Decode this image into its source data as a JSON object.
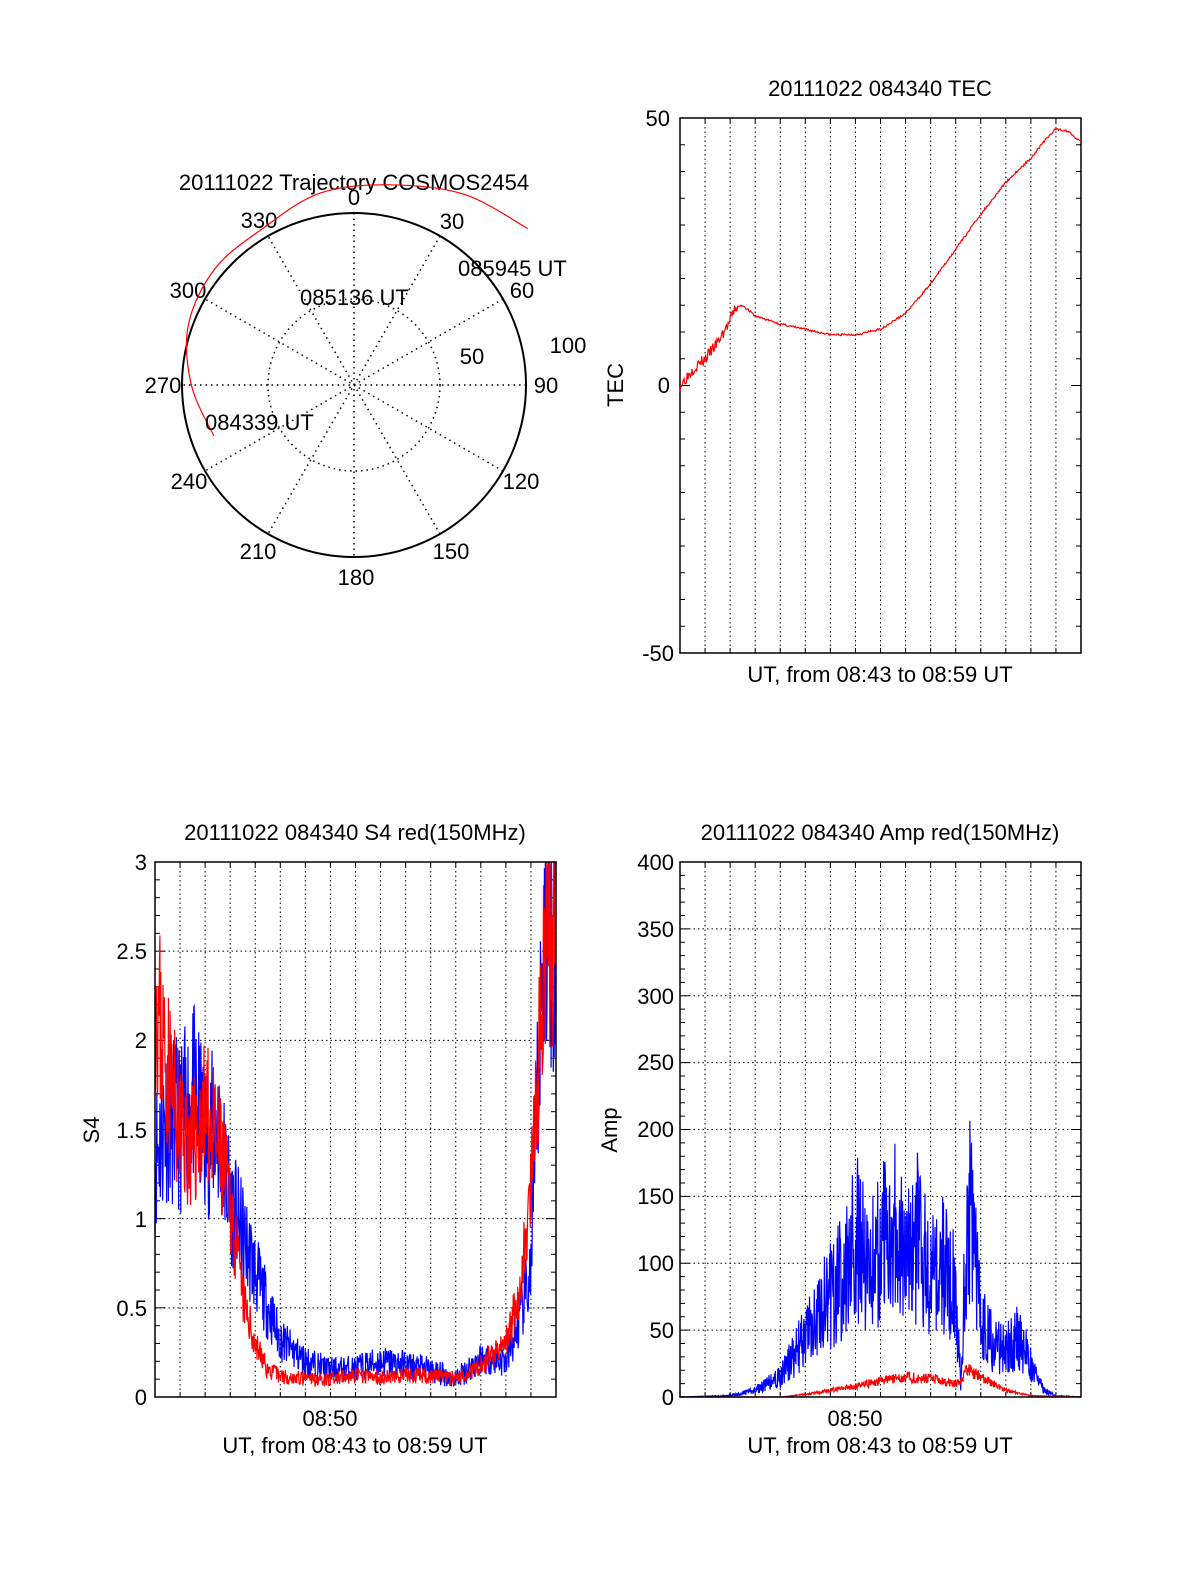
{
  "colors": {
    "red": "#ff0000",
    "blue": "#0000ff",
    "axis": "#000000",
    "grid": "#000000",
    "background": "#ffffff"
  },
  "chart_data": [
    {
      "id": "trajectory",
      "type": "scatter",
      "projection": "polar",
      "title": "20111022 Trajectory COSMOS2454",
      "angle_labels": [
        "0",
        "30",
        "60",
        "90",
        "120",
        "150",
        "180",
        "210",
        "240",
        "270",
        "300",
        "330"
      ],
      "radius_labels": [
        "50",
        "100"
      ],
      "radius_values": [
        50,
        100
      ],
      "rlim": [
        0,
        100
      ],
      "grid": true,
      "series": [
        {
          "color": "red",
          "points": [
            {
              "az": 250,
              "zenith": 88
            },
            {
              "az": 270,
              "zenith": 96
            },
            {
              "az": 290,
              "zenith": 104
            },
            {
              "az": 310,
              "zenith": 107
            },
            {
              "az": 330,
              "zenith": 107
            },
            {
              "az": 350,
              "zenith": 115
            },
            {
              "az": 10,
              "zenith": 120
            },
            {
              "az": 30,
              "zenith": 130
            },
            {
              "az": 48,
              "zenith": 138
            }
          ]
        }
      ],
      "annotations": [
        {
          "text": "084339 UT",
          "az": 250,
          "zenith": 88
        },
        {
          "text": "085136 UT",
          "az": 1,
          "zenith": 50
        },
        {
          "text": "085945 UT",
          "az": 48,
          "zenith": 138
        }
      ]
    },
    {
      "id": "tec",
      "type": "line",
      "title": "20111022 084340 TEC",
      "xlabel": "UT, from 08:43 to 08:59 UT",
      "ylabel": "TEC",
      "xlim": [
        0,
        16
      ],
      "ylim": [
        -50,
        50
      ],
      "yticks": [
        -50,
        0,
        50
      ],
      "xticks": [],
      "grid": true,
      "series": [
        {
          "color": "red",
          "x": [
            0.0,
            0.5,
            1.0,
            1.5,
            2.0,
            2.2,
            2.5,
            3.0,
            4.0,
            5.0,
            6.0,
            7.0,
            8.0,
            9.0,
            10.0,
            11.0,
            12.0,
            13.0,
            14.0,
            14.5,
            15.0,
            15.5,
            16.0
          ],
          "y": [
            0.0,
            3.0,
            5.0,
            8.0,
            12.0,
            14.5,
            15.0,
            13.0,
            11.5,
            10.5,
            9.5,
            9.5,
            10.5,
            13.5,
            19.0,
            25.5,
            32.0,
            38.0,
            42.5,
            45.5,
            48.0,
            47.5,
            45.5
          ]
        }
      ]
    },
    {
      "id": "s4",
      "type": "line",
      "title": "20111022 084340 S4 red(150MHz)",
      "xlabel": "UT, from 08:43 to 08:59 UT",
      "ylabel": "S4",
      "xlim": [
        0,
        16
      ],
      "ylim": [
        0,
        3
      ],
      "yticks": [
        "0",
        "0.5",
        "1",
        "1.5",
        "2",
        "2.5",
        "3"
      ],
      "xticks": [
        {
          "label": "08:50",
          "x": 7.4
        }
      ],
      "grid": true,
      "series": [
        {
          "color": "blue",
          "x": [
            0.0,
            0.5,
            1.0,
            1.5,
            2.0,
            2.5,
            3.0,
            3.5,
            4.0,
            4.5,
            5.0,
            6.0,
            7.0,
            8.0,
            9.0,
            10.0,
            11.0,
            12.0,
            13.0,
            14.0,
            14.5,
            15.0,
            15.3,
            15.6,
            16.0
          ],
          "y": [
            1.35,
            1.6,
            1.5,
            1.7,
            1.45,
            1.5,
            1.1,
            0.9,
            0.7,
            0.5,
            0.32,
            0.2,
            0.15,
            0.16,
            0.2,
            0.18,
            0.15,
            0.1,
            0.22,
            0.2,
            0.4,
            0.7,
            1.8,
            2.8,
            2.5
          ]
        },
        {
          "color": "red",
          "x": [
            0.0,
            0.3,
            0.7,
            1.0,
            1.5,
            2.0,
            2.5,
            3.0,
            3.5,
            4.0,
            4.5,
            5.0,
            6.0,
            7.0,
            8.0,
            9.0,
            10.0,
            11.0,
            12.0,
            13.0,
            14.0,
            14.5,
            15.0,
            15.3,
            15.6,
            16.0
          ],
          "y": [
            2.3,
            2.0,
            1.7,
            1.5,
            1.4,
            1.6,
            1.4,
            1.1,
            0.55,
            0.3,
            0.15,
            0.12,
            0.1,
            0.1,
            0.12,
            0.11,
            0.12,
            0.12,
            0.1,
            0.18,
            0.3,
            0.55,
            1.1,
            1.9,
            2.5,
            2.6
          ]
        }
      ]
    },
    {
      "id": "amp",
      "type": "line",
      "title": "20111022 084340 Amp red(150MHz)",
      "xlabel": "UT, from 08:43 to 08:59 UT",
      "ylabel": "Amp",
      "xlim": [
        0,
        16
      ],
      "ylim": [
        0,
        400
      ],
      "yticks": [
        "0",
        "50",
        "100",
        "150",
        "200",
        "250",
        "300",
        "350",
        "400"
      ],
      "xticks": [
        {
          "label": "08:50",
          "x": 7.4
        }
      ],
      "grid": true,
      "series": [
        {
          "color": "blue",
          "x": [
            0.0,
            2.0,
            3.0,
            4.0,
            4.5,
            5.0,
            5.5,
            6.0,
            6.5,
            7.0,
            7.5,
            8.0,
            8.5,
            9.0,
            9.5,
            10.0,
            10.5,
            11.0,
            11.2,
            11.5,
            12.0,
            12.5,
            13.0,
            13.5,
            14.0,
            14.5,
            15.0,
            16.0
          ],
          "y": [
            0,
            1,
            5,
            15,
            30,
            45,
            60,
            75,
            90,
            120,
            100,
            110,
            140,
            95,
            120,
            85,
            100,
            80,
            10,
            150,
            60,
            40,
            35,
            45,
            25,
            5,
            1,
            0
          ]
        },
        {
          "color": "red",
          "x": [
            0.0,
            4.0,
            5.0,
            6.0,
            7.0,
            8.0,
            9.0,
            10.0,
            11.0,
            11.5,
            12.0,
            12.5,
            13.0,
            13.5,
            14.0,
            16.0
          ],
          "y": [
            0,
            0,
            2,
            5,
            8,
            12,
            15,
            14,
            10,
            20,
            15,
            10,
            5,
            3,
            1,
            0
          ]
        }
      ]
    }
  ]
}
